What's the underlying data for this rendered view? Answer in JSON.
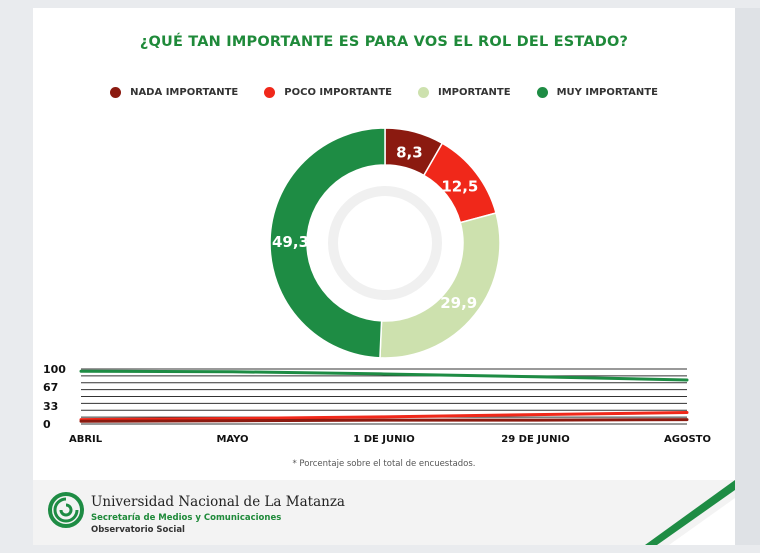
{
  "title": "¿QUÉ TAN IMPORTANTE ES PARA VOS EL ROL DEL ESTADO?",
  "legend": [
    {
      "label": "NADA IMPORTANTE",
      "color": "#8b1a10"
    },
    {
      "label": "POCO IMPORTANTE",
      "color": "#f0281a"
    },
    {
      "label": "IMPORTANTE",
      "color": "#cde1ae"
    },
    {
      "label": "MUY IMPORTANTE",
      "color": "#1e8c44"
    }
  ],
  "chart_data": [
    {
      "type": "pie",
      "donut": true,
      "categories": [
        "NADA IMPORTANTE",
        "POCO IMPORTANTE",
        "IMPORTANTE",
        "MUY IMPORTANTE"
      ],
      "values": [
        8.3,
        12.5,
        29.9,
        49.3
      ],
      "labels": [
        "8,3",
        "12,5",
        "29,9",
        "49,3"
      ],
      "colors": [
        "#8b1a10",
        "#f0281a",
        "#cde1ae",
        "#1e8c44"
      ],
      "legend_position": "top"
    },
    {
      "type": "line",
      "x": [
        "ABRIL",
        "MAYO",
        "1 DE JUNIO",
        "29 DE JUNIO",
        "AGOSTO"
      ],
      "y_ticks": [
        "100",
        "67",
        "33",
        "0"
      ],
      "ylim": [
        0,
        100
      ],
      "series": [
        {
          "color": "#1e8c44",
          "values": [
            96,
            95,
            91,
            86,
            80
          ]
        },
        {
          "color": "#f0281a",
          "values": [
            8,
            10,
            13,
            17,
            21
          ]
        },
        {
          "color": "#8b1a10",
          "values": [
            5,
            6,
            7,
            7,
            8
          ]
        }
      ]
    }
  ],
  "footnote": "* Porcentaje sobre el total de encuestados.",
  "footer": {
    "university": "Universidad Nacional de La Matanza",
    "secretaria": "Secretaría de Medios y Comunicaciones",
    "observatorio": "Observatorio Social"
  }
}
